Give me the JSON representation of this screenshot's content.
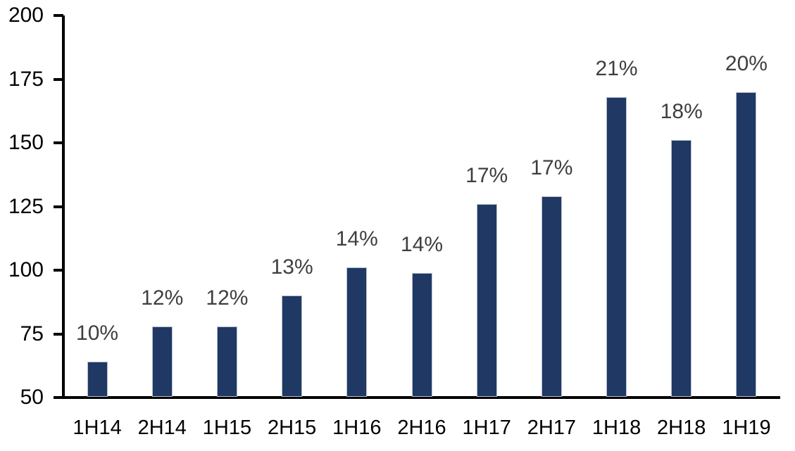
{
  "chart_data": {
    "type": "bar",
    "title": "",
    "xlabel": "",
    "ylabel": "",
    "categories": [
      "1H14",
      "2H14",
      "1H15",
      "2H15",
      "1H16",
      "2H16",
      "1H17",
      "2H17",
      "1H18",
      "2H18",
      "1H19"
    ],
    "values": [
      64,
      78,
      78,
      90,
      101,
      99,
      126,
      129,
      168,
      151,
      170
    ],
    "data_labels": [
      "10%",
      "12%",
      "12%",
      "13%",
      "14%",
      "14%",
      "17%",
      "17%",
      "21%",
      "18%",
      "20%"
    ],
    "ylim": [
      50,
      200
    ],
    "yticks": [
      50,
      75,
      100,
      125,
      150,
      175,
      200
    ],
    "grid": false,
    "legend_position": "none",
    "colors": {
      "bar_fill": "#203864",
      "bar_edge": "#b7c0ce",
      "data_label": "#3f3f3f",
      "axis_line": "#000000",
      "tick_label": "#000000",
      "background": "#ffffff"
    }
  }
}
